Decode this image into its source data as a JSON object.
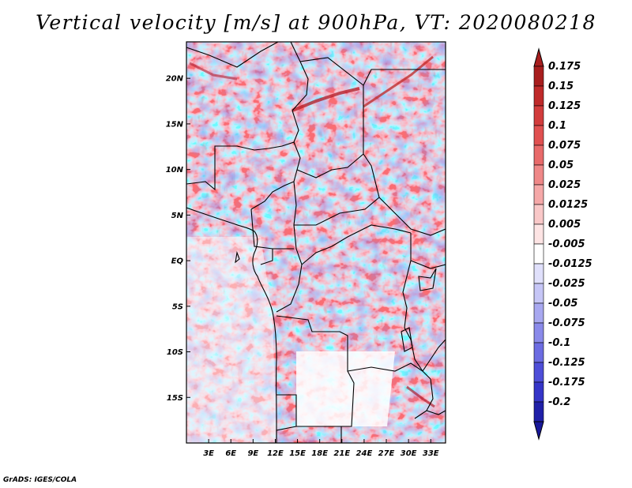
{
  "title": "Vertical velocity [m/s] at 900hPa, VT: 2020080218",
  "footer": "GrADS: IGES/COLA",
  "map": {
    "lon_range": [
      0,
      35
    ],
    "lat_range": [
      -20,
      24
    ],
    "lat_ticks": [
      {
        "value": 20,
        "label": "20N"
      },
      {
        "value": 15,
        "label": "15N"
      },
      {
        "value": 10,
        "label": "10N"
      },
      {
        "value": 5,
        "label": "5N"
      },
      {
        "value": 0,
        "label": "EQ"
      },
      {
        "value": -5,
        "label": "5S"
      },
      {
        "value": -10,
        "label": "10S"
      },
      {
        "value": -15,
        "label": "15S"
      }
    ],
    "lon_ticks": [
      {
        "value": 3,
        "label": "3E"
      },
      {
        "value": 6,
        "label": "6E"
      },
      {
        "value": 9,
        "label": "9E"
      },
      {
        "value": 12,
        "label": "12E"
      },
      {
        "value": 15,
        "label": "15E"
      },
      {
        "value": 18,
        "label": "18E"
      },
      {
        "value": 21,
        "label": "21E"
      },
      {
        "value": 24,
        "label": "24E"
      },
      {
        "value": 27,
        "label": "27E"
      },
      {
        "value": 30,
        "label": "30E"
      },
      {
        "value": 33,
        "label": "33E"
      }
    ]
  },
  "colorbar": {
    "levels": [
      "0.175",
      "0.15",
      "0.125",
      "0.1",
      "0.075",
      "0.05",
      "0.025",
      "0.0125",
      "0.005",
      "-0.005",
      "-0.0125",
      "-0.025",
      "-0.05",
      "-0.075",
      "-0.1",
      "-0.125",
      "-0.175",
      "-0.2"
    ],
    "colors": [
      "#a81e1e",
      "#bf2a2a",
      "#d23c3c",
      "#e05050",
      "#e86a6a",
      "#ef8888",
      "#f5a8a8",
      "#f9c8c8",
      "#fde4e4",
      "#ffffff",
      "#e0e0fb",
      "#c6c6f6",
      "#a8a8f0",
      "#8a8aea",
      "#6c6ce2",
      "#4e4ed8",
      "#3535c8",
      "#2020a8"
    ],
    "top_color": "#a81e1e",
    "bottom_color": "#18189a"
  }
}
